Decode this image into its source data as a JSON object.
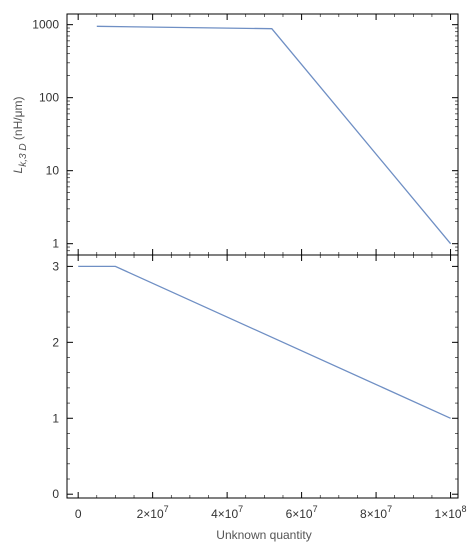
{
  "chart_data": [
    {
      "type": "line",
      "title": "",
      "xlabel": "",
      "ylabel": "L_{k,3 D} (nH/μm)",
      "ylabel_parts": {
        "L": "L",
        "subscript": "k,3 D",
        "unit": "(nH/μm)"
      },
      "yscale": "log",
      "xlim": [
        0,
        100000000
      ],
      "ylim": [
        0.7,
        1400
      ],
      "yticks": [
        1,
        10,
        100,
        1000
      ],
      "ytick_labels": [
        "1",
        "10",
        "100",
        "1000"
      ],
      "grid": false,
      "series": [
        {
          "color": "#6f8fc4",
          "x": [
            5000000,
            52000000,
            100000000
          ],
          "y": [
            950,
            880,
            1
          ]
        }
      ]
    },
    {
      "type": "line",
      "title": "",
      "xlabel": "Unknown quantity",
      "ylabel": "",
      "xlim": [
        -3000000,
        102000000
      ],
      "ylim": [
        -0.05,
        3.15
      ],
      "yticks": [
        0,
        1,
        2,
        3
      ],
      "ytick_labels": [
        "0",
        "1",
        "2",
        "3"
      ],
      "xticks": [
        0,
        20000000,
        40000000,
        60000000,
        80000000,
        100000000
      ],
      "xtick_labels": [
        {
          "base": "0",
          "exp": ""
        },
        {
          "base": "2×10",
          "exp": "7"
        },
        {
          "base": "4×10",
          "exp": "7"
        },
        {
          "base": "6×10",
          "exp": "7"
        },
        {
          "base": "8×10",
          "exp": "7"
        },
        {
          "base": "1×10",
          "exp": "8"
        }
      ],
      "grid": false,
      "series": [
        {
          "color": "#6f8fc4",
          "x": [
            0,
            10000000,
            100000000
          ],
          "y": [
            3,
            3,
            1
          ]
        }
      ]
    }
  ]
}
